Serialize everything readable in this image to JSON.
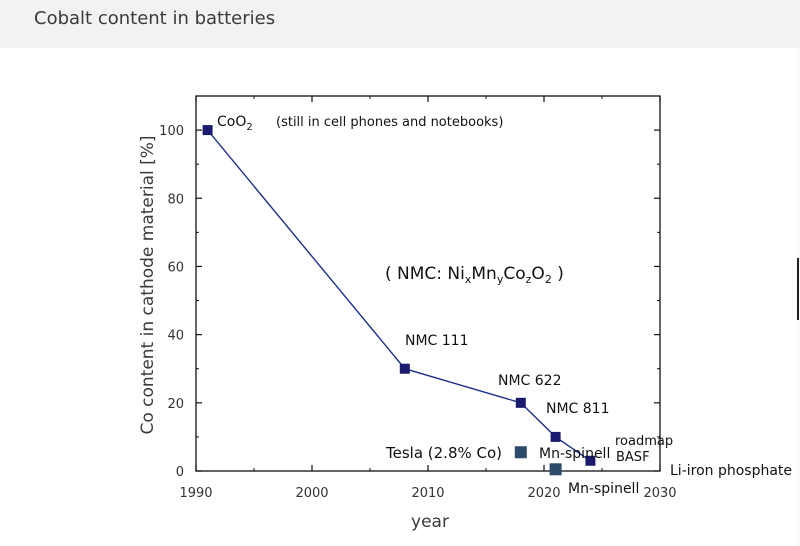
{
  "page": {
    "title": "Cobalt content in batteries"
  },
  "chart_data": {
    "type": "line",
    "xlabel": "year",
    "ylabel": "Co content in cathode material [%]",
    "xlim": [
      1990,
      2030
    ],
    "ylim": [
      0,
      110
    ],
    "x_ticks": [
      1990,
      2000,
      2010,
      2020,
      2030
    ],
    "y_ticks": [
      0,
      20,
      40,
      60,
      80,
      100
    ],
    "grid": false,
    "line_color": "#1f2f8c",
    "marker_color": "#1a1a6e",
    "series": [
      {
        "points": [
          {
            "x": 1991,
            "y": 100,
            "label": "CoO2"
          },
          {
            "x": 2008,
            "y": 30,
            "label": "NMC 111"
          },
          {
            "x": 2018,
            "y": 20,
            "label": "NMC 622"
          },
          {
            "x": 2021,
            "y": 10,
            "label": "NMC 811"
          },
          {
            "x": 2024,
            "y": 3,
            "label": ""
          }
        ]
      }
    ],
    "standalone_points": [
      {
        "x": 2018,
        "y": 5.5,
        "label": "Tesla (2.8% Co)",
        "color": "#2c4a6a"
      },
      {
        "x": 2021,
        "y": 0.5,
        "label": "Mn-spinell",
        "color": "#2c4a6a"
      }
    ],
    "annotations": {
      "coo2_note": "(still in cell phones and notebooks)",
      "nmc_formula_open": "( NMC: Ni",
      "nmc_sub_x": "x",
      "nmc_mn": "Mn",
      "nmc_sub_y": "y",
      "nmc_co": "Co",
      "nmc_sub_z": "z",
      "nmc_o": "O",
      "nmc_sub_2": "2",
      "nmc_close": " )",
      "coo2_main": "CoO",
      "coo2_sub": "2",
      "mn_spinell_upper": "Mn-spinell",
      "roadmap": "roadmap",
      "basf": "BASF",
      "li_iron": "Li-iron phosphate"
    }
  }
}
